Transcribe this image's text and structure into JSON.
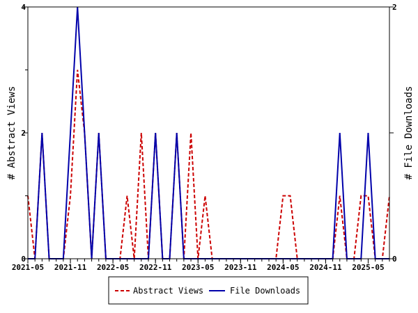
{
  "chart_data": {
    "type": "line",
    "x_tick_labels": [
      "2021-05",
      "2021-11",
      "2022-05",
      "2022-11",
      "2023-05",
      "2023-11",
      "2024-05",
      "2024-11",
      "2025-05"
    ],
    "x_start_month": "2021-05",
    "month_count": 52,
    "y_left": {
      "label": "# Abstract Views",
      "range": [
        0,
        4
      ],
      "ticks": [
        0,
        2,
        4
      ]
    },
    "y_right": {
      "label": "# File Downloads",
      "range": [
        0,
        2
      ],
      "ticks": [
        0,
        1,
        2
      ]
    },
    "right_tick_labels": [
      "0",
      "2"
    ],
    "series": [
      {
        "name": "Abstract Views",
        "axis": "left",
        "color": "#cc0000",
        "style": "dashed",
        "values": [
          1,
          0,
          2,
          0,
          0,
          0,
          1,
          3,
          2,
          0,
          2,
          0,
          0,
          0,
          1,
          0,
          2,
          0,
          2,
          0,
          0,
          2,
          0,
          2,
          0,
          1,
          0,
          0,
          0,
          0,
          0,
          0,
          0,
          0,
          0,
          0,
          1,
          1,
          0,
          0,
          0,
          0,
          0,
          0,
          1,
          0,
          0,
          1,
          1,
          0,
          0,
          1
        ]
      },
      {
        "name": "File Downloads",
        "axis": "right",
        "color": "#0000aa",
        "style": "solid",
        "values": [
          0,
          0,
          1,
          0,
          0,
          0,
          1,
          2,
          1,
          0,
          1,
          0,
          0,
          0,
          0,
          0,
          0,
          0,
          1,
          0,
          0,
          1,
          0,
          0,
          0,
          0,
          0,
          0,
          0,
          0,
          0,
          0,
          0,
          0,
          0,
          0,
          0,
          0,
          0,
          0,
          0,
          0,
          0,
          0,
          1,
          0,
          0,
          0,
          1,
          0,
          0,
          0
        ]
      }
    ],
    "legend": {
      "placement": "bottom"
    },
    "grid": false
  }
}
